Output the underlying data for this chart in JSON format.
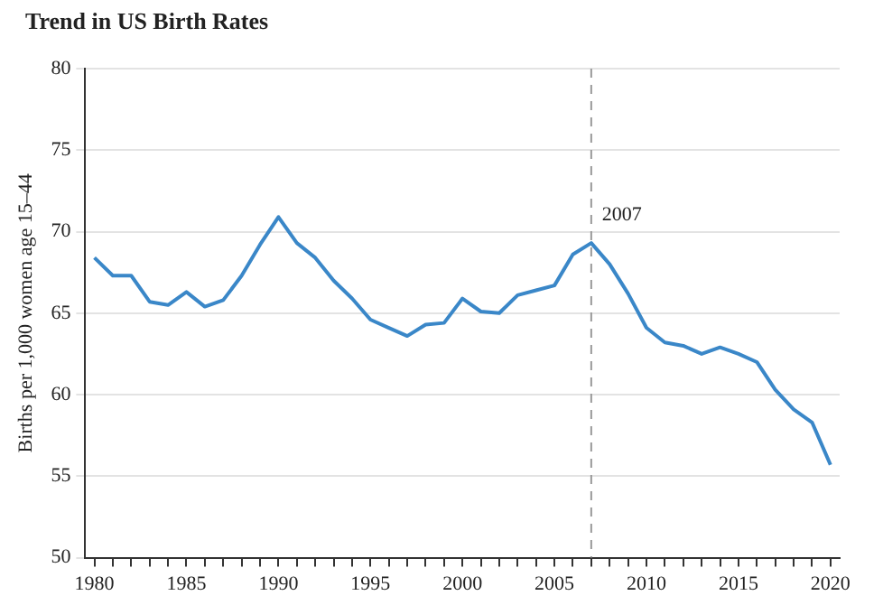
{
  "chart_data": {
    "type": "line",
    "title": "Trend in US Birth Rates",
    "ylabel": "Births per 1,000 women age 15–44",
    "x": [
      1980,
      1981,
      1982,
      1983,
      1984,
      1985,
      1986,
      1987,
      1988,
      1989,
      1990,
      1991,
      1992,
      1993,
      1994,
      1995,
      1996,
      1997,
      1998,
      1999,
      2000,
      2001,
      2002,
      2003,
      2004,
      2005,
      2006,
      2007,
      2008,
      2009,
      2010,
      2011,
      2012,
      2013,
      2014,
      2015,
      2016,
      2017,
      2018,
      2019,
      2020
    ],
    "series": [
      {
        "color": "#3a87c8",
        "values": [
          68.4,
          67.3,
          67.3,
          65.7,
          65.5,
          66.3,
          65.4,
          65.8,
          67.3,
          69.2,
          70.9,
          69.3,
          68.4,
          67.0,
          65.9,
          64.6,
          64.1,
          63.6,
          64.3,
          64.4,
          65.9,
          65.1,
          65.0,
          66.1,
          66.4,
          66.7,
          68.6,
          69.3,
          68.0,
          66.2,
          64.1,
          63.2,
          63.0,
          62.5,
          62.9,
          62.5,
          62.0,
          60.3,
          59.1,
          58.3,
          55.7
        ]
      }
    ],
    "xlim": [
      1979.5,
      2020.5
    ],
    "xticks": [
      1980,
      {
        "value": 1981,
        "label": null
      },
      {
        "value": 1982,
        "label": null
      },
      {
        "value": 1983,
        "label": null
      },
      {
        "value": 1984,
        "label": null
      },
      1985,
      {
        "value": 1986,
        "label": null
      },
      {
        "value": 1987,
        "label": null
      },
      {
        "value": 1988,
        "label": null
      },
      {
        "value": 1989,
        "label": null
      },
      1990,
      {
        "value": 1991,
        "label": null
      },
      {
        "value": 1992,
        "label": null
      },
      {
        "value": 1993,
        "label": null
      },
      {
        "value": 1994,
        "label": null
      },
      1995,
      {
        "value": 1996,
        "label": null
      },
      {
        "value": 1997,
        "label": null
      },
      {
        "value": 1998,
        "label": null
      },
      {
        "value": 1999,
        "label": null
      },
      2000,
      {
        "value": 2001,
        "label": null
      },
      {
        "value": 2002,
        "label": null
      },
      {
        "value": 2003,
        "label": null
      },
      {
        "value": 2004,
        "label": null
      },
      2005,
      {
        "value": 2006,
        "label": null
      },
      {
        "value": 2007,
        "label": null
      },
      {
        "value": 2008,
        "label": null
      },
      {
        "value": 2009,
        "label": null
      },
      2010,
      {
        "value": 2011,
        "label": null
      },
      {
        "value": 2012,
        "label": null
      },
      {
        "value": 2013,
        "label": null
      },
      {
        "value": 2014,
        "label": null
      },
      2015,
      {
        "value": 2016,
        "label": null
      },
      {
        "value": 2017,
        "label": null
      },
      {
        "value": 2018,
        "label": null
      },
      {
        "value": 2019,
        "label": null
      },
      2020
    ],
    "ylim": [
      50,
      80
    ],
    "yticks": [
      50,
      55,
      60,
      65,
      70,
      75,
      80
    ],
    "grid": "y",
    "legend": false,
    "marker": "none",
    "line_style": "solid",
    "ref_lines": [
      {
        "axis": "x",
        "value": 2007,
        "label": "2007",
        "color": "#999999",
        "line_style": "dashed"
      }
    ]
  }
}
